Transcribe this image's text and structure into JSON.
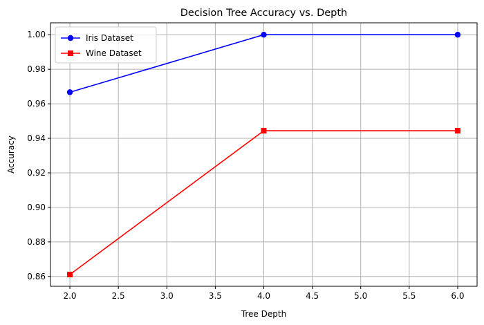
{
  "chart_data": {
    "type": "line",
    "title": "Decision Tree Accuracy vs. Depth",
    "xlabel": "Tree Depth",
    "ylabel": "Accuracy",
    "x": [
      2,
      4,
      6
    ],
    "xlim": [
      1.8,
      6.2
    ],
    "ylim": [
      0.8543,
      1.0069
    ],
    "xticks": [
      "2.0",
      "2.5",
      "3.0",
      "3.5",
      "4.0",
      "4.5",
      "5.0",
      "5.5",
      "6.0"
    ],
    "yticks": [
      "0.86",
      "0.88",
      "0.90",
      "0.92",
      "0.94",
      "0.96",
      "0.98",
      "1.00"
    ],
    "grid": true,
    "legend_position": "top-left",
    "series": [
      {
        "name": "Iris Dataset",
        "values": [
          0.9667,
          1.0,
          1.0
        ],
        "color": "#0000ff",
        "marker": "circle"
      },
      {
        "name": "Wine Dataset",
        "values": [
          0.8611,
          0.9444,
          0.9444
        ],
        "color": "#ff0000",
        "marker": "square"
      }
    ]
  }
}
